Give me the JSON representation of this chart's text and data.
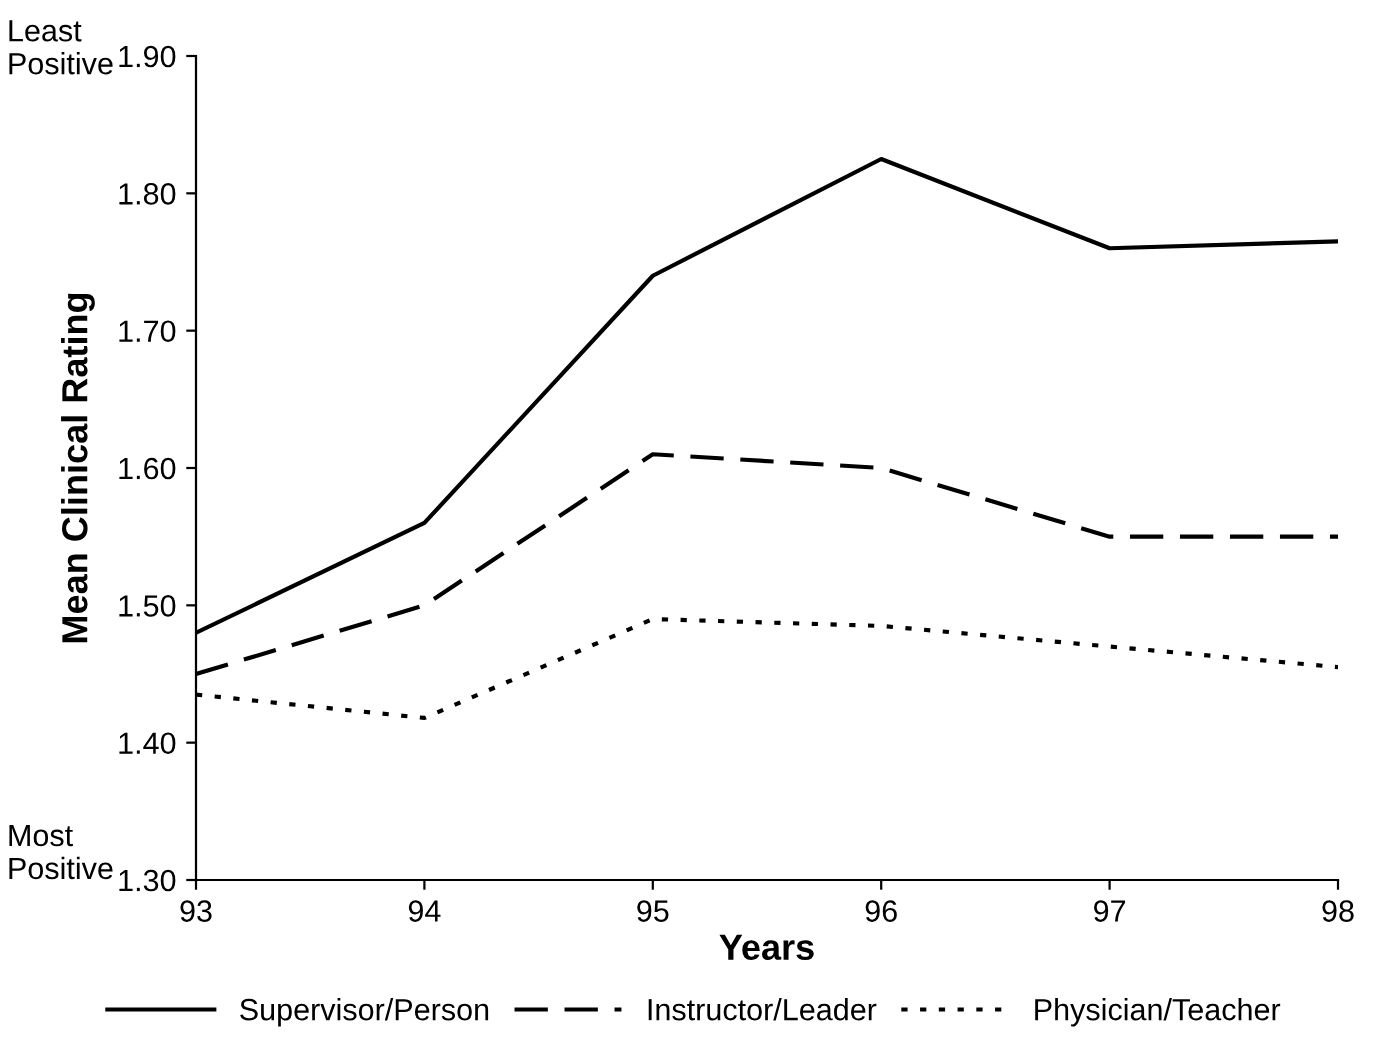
{
  "chart_data": {
    "type": "line",
    "xlabel": "Years",
    "ylabel": "Mean Clinical Rating",
    "x": [
      93,
      94,
      95,
      96,
      97,
      98
    ],
    "series": [
      {
        "name": "Supervisor/Person",
        "color": "#000000",
        "line_style": "solid",
        "values": [
          1.48,
          1.56,
          1.74,
          1.825,
          1.76,
          1.765
        ]
      },
      {
        "name": "Instructor/Leader",
        "color": "#000000",
        "line_style": "dashed",
        "values": [
          1.45,
          1.5,
          1.61,
          1.6,
          1.55,
          1.55
        ]
      },
      {
        "name": "Physician/Teacher",
        "color": "#000000",
        "line_style": "dotted",
        "values": [
          1.435,
          1.418,
          1.49,
          1.485,
          1.47,
          1.455
        ]
      }
    ],
    "xlim": [
      93,
      98
    ],
    "xticks": [
      93,
      94,
      95,
      96,
      97,
      98
    ],
    "ylim": [
      1.3,
      1.9
    ],
    "yticks": [
      {
        "value": 1.3,
        "label": "1.30"
      },
      {
        "value": 1.4,
        "label": "1.40"
      },
      {
        "value": 1.5,
        "label": "1.50"
      },
      {
        "value": 1.6,
        "label": "1.60"
      },
      {
        "value": 1.7,
        "label": "1.70"
      },
      {
        "value": 1.8,
        "label": "1.80"
      },
      {
        "value": 1.9,
        "label": "1.90"
      }
    ],
    "grid": false,
    "legend": "bottom",
    "marker": "none",
    "annotations": [
      "Least\nPositive",
      "Most\nPositive"
    ]
  }
}
